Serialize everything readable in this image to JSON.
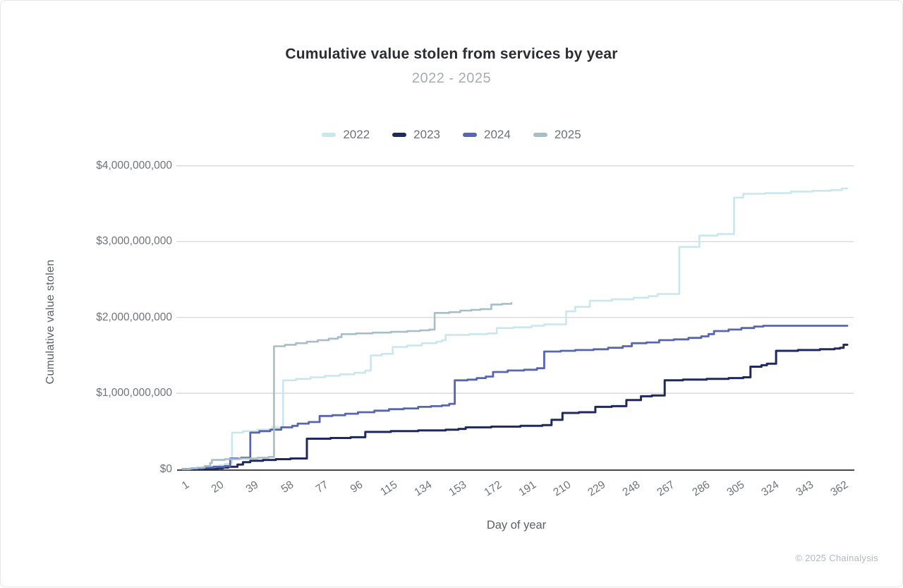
{
  "header": {
    "title": "Cumulative value stolen from services by year",
    "subtitle": "2022 - 2025"
  },
  "footer": {
    "copyright": "© 2025 Chainalysis"
  },
  "chart_data": {
    "type": "line",
    "subtype": "cumulative-step",
    "title": "Cumulative value stolen from services by year",
    "subtitle": "2022 - 2025",
    "xlabel": "Day of year",
    "ylabel": "Cumulative value stolen",
    "values_unit": "USD billions",
    "xlim": [
      1,
      365
    ],
    "ylim_billions": [
      0,
      4
    ],
    "grid": true,
    "legend_position": "top",
    "x_ticks": [
      1,
      20,
      39,
      58,
      77,
      96,
      115,
      134,
      153,
      172,
      191,
      210,
      229,
      248,
      267,
      286,
      305,
      324,
      343,
      362
    ],
    "y_ticks": [
      {
        "value": 4,
        "label": "$4,000,000,000"
      },
      {
        "value": 3,
        "label": "$3,000,000,000"
      },
      {
        "value": 2,
        "label": "$2,000,000,000"
      },
      {
        "value": 1,
        "label": "$1,000,000,000"
      },
      {
        "value": 0,
        "label": "$0"
      }
    ],
    "series": [
      {
        "name": "2022",
        "color": "#cbe7ee",
        "stroke_width": 2.6,
        "final_value_billions": 3.7,
        "points": [
          [
            1,
            0
          ],
          [
            6,
            0.01
          ],
          [
            11,
            0.02
          ],
          [
            16,
            0.04
          ],
          [
            21,
            0.05
          ],
          [
            24,
            0.07
          ],
          [
            27,
            0.08
          ],
          [
            28,
            0.48
          ],
          [
            34,
            0.5
          ],
          [
            42,
            0.52
          ],
          [
            50,
            0.55
          ],
          [
            56,
            1.17
          ],
          [
            63,
            1.19
          ],
          [
            71,
            1.21
          ],
          [
            79,
            1.23
          ],
          [
            87,
            1.25
          ],
          [
            95,
            1.27
          ],
          [
            101,
            1.3
          ],
          [
            104,
            1.5
          ],
          [
            110,
            1.52
          ],
          [
            116,
            1.61
          ],
          [
            124,
            1.63
          ],
          [
            132,
            1.66
          ],
          [
            140,
            1.68
          ],
          [
            143,
            1.7
          ],
          [
            145,
            1.77
          ],
          [
            158,
            1.78
          ],
          [
            168,
            1.79
          ],
          [
            173,
            1.86
          ],
          [
            182,
            1.87
          ],
          [
            192,
            1.89
          ],
          [
            199,
            1.91
          ],
          [
            211,
            2.08
          ],
          [
            216,
            2.14
          ],
          [
            224,
            2.22
          ],
          [
            236,
            2.24
          ],
          [
            248,
            2.26
          ],
          [
            256,
            2.28
          ],
          [
            261,
            2.31
          ],
          [
            273,
            2.93
          ],
          [
            284,
            3.08
          ],
          [
            294,
            3.1
          ],
          [
            303,
            3.58
          ],
          [
            308,
            3.63
          ],
          [
            320,
            3.64
          ],
          [
            334,
            3.66
          ],
          [
            346,
            3.67
          ],
          [
            356,
            3.68
          ],
          [
            362,
            3.7
          ],
          [
            365,
            3.7
          ]
        ]
      },
      {
        "name": "2023",
        "color": "#20295e",
        "stroke_width": 3,
        "final_value_billions": 1.64,
        "points": [
          [
            1,
            0
          ],
          [
            20,
            0.01
          ],
          [
            23,
            0.02
          ],
          [
            26,
            0.03
          ],
          [
            31,
            0.06
          ],
          [
            34,
            0.09
          ],
          [
            38,
            0.11
          ],
          [
            45,
            0.12
          ],
          [
            52,
            0.13
          ],
          [
            60,
            0.14
          ],
          [
            69,
            0.4
          ],
          [
            82,
            0.41
          ],
          [
            93,
            0.42
          ],
          [
            101,
            0.49
          ],
          [
            115,
            0.5
          ],
          [
            130,
            0.51
          ],
          [
            145,
            0.52
          ],
          [
            152,
            0.53
          ],
          [
            156,
            0.55
          ],
          [
            170,
            0.56
          ],
          [
            186,
            0.57
          ],
          [
            198,
            0.58
          ],
          [
            203,
            0.65
          ],
          [
            209,
            0.74
          ],
          [
            218,
            0.75
          ],
          [
            227,
            0.82
          ],
          [
            236,
            0.83
          ],
          [
            244,
            0.91
          ],
          [
            252,
            0.96
          ],
          [
            258,
            0.97
          ],
          [
            265,
            1.17
          ],
          [
            275,
            1.18
          ],
          [
            288,
            1.19
          ],
          [
            300,
            1.2
          ],
          [
            308,
            1.21
          ],
          [
            312,
            1.35
          ],
          [
            318,
            1.37
          ],
          [
            321,
            1.39
          ],
          [
            326,
            1.56
          ],
          [
            338,
            1.57
          ],
          [
            350,
            1.58
          ],
          [
            358,
            1.59
          ],
          [
            361,
            1.6
          ],
          [
            363,
            1.64
          ],
          [
            365,
            1.64
          ]
        ]
      },
      {
        "name": "2024",
        "color": "#5866ad",
        "stroke_width": 2.8,
        "final_value_billions": 1.89,
        "points": [
          [
            1,
            0
          ],
          [
            6,
            0.01
          ],
          [
            12,
            0.02
          ],
          [
            18,
            0.03
          ],
          [
            24,
            0.04
          ],
          [
            27,
            0.14
          ],
          [
            33,
            0.15
          ],
          [
            38,
            0.48
          ],
          [
            43,
            0.5
          ],
          [
            49,
            0.52
          ],
          [
            55,
            0.55
          ],
          [
            61,
            0.57
          ],
          [
            64,
            0.6
          ],
          [
            70,
            0.62
          ],
          [
            76,
            0.7
          ],
          [
            83,
            0.71
          ],
          [
            90,
            0.73
          ],
          [
            97,
            0.75
          ],
          [
            106,
            0.77
          ],
          [
            114,
            0.79
          ],
          [
            122,
            0.8
          ],
          [
            130,
            0.82
          ],
          [
            137,
            0.83
          ],
          [
            143,
            0.84
          ],
          [
            147,
            0.86
          ],
          [
            150,
            1.17
          ],
          [
            157,
            1.18
          ],
          [
            162,
            1.2
          ],
          [
            167,
            1.22
          ],
          [
            171,
            1.28
          ],
          [
            179,
            1.3
          ],
          [
            188,
            1.31
          ],
          [
            195,
            1.33
          ],
          [
            199,
            1.55
          ],
          [
            208,
            1.56
          ],
          [
            216,
            1.57
          ],
          [
            226,
            1.58
          ],
          [
            234,
            1.6
          ],
          [
            242,
            1.62
          ],
          [
            247,
            1.66
          ],
          [
            255,
            1.67
          ],
          [
            262,
            1.7
          ],
          [
            270,
            1.71
          ],
          [
            278,
            1.73
          ],
          [
            285,
            1.75
          ],
          [
            289,
            1.78
          ],
          [
            292,
            1.82
          ],
          [
            300,
            1.84
          ],
          [
            307,
            1.86
          ],
          [
            314,
            1.88
          ],
          [
            319,
            1.89
          ],
          [
            365,
            1.89
          ]
        ]
      },
      {
        "name": "2025",
        "color": "#a7bec9",
        "stroke_width": 2.6,
        "final_value_billions": 2.19,
        "points": [
          [
            1,
            0
          ],
          [
            5,
            0.01
          ],
          [
            9,
            0.02
          ],
          [
            13,
            0.04
          ],
          [
            16,
            0.08
          ],
          [
            17,
            0.12
          ],
          [
            24,
            0.13
          ],
          [
            32,
            0.14
          ],
          [
            42,
            0.15
          ],
          [
            48,
            0.16
          ],
          [
            51,
            1.62
          ],
          [
            57,
            1.64
          ],
          [
            63,
            1.66
          ],
          [
            69,
            1.68
          ],
          [
            75,
            1.7
          ],
          [
            81,
            1.72
          ],
          [
            86,
            1.74
          ],
          [
            88,
            1.78
          ],
          [
            96,
            1.79
          ],
          [
            105,
            1.8
          ],
          [
            115,
            1.81
          ],
          [
            124,
            1.82
          ],
          [
            131,
            1.83
          ],
          [
            136,
            1.84
          ],
          [
            139,
            2.06
          ],
          [
            147,
            2.07
          ],
          [
            153,
            2.09
          ],
          [
            159,
            2.1
          ],
          [
            164,
            2.11
          ],
          [
            170,
            2.17
          ],
          [
            176,
            2.18
          ],
          [
            181,
            2.19
          ]
        ]
      }
    ],
    "colors": {
      "gridline": "#d2d2d4",
      "axis_line": "#45454b",
      "tick_text": "#6f737b",
      "title_text": "#2b2d33",
      "subtitle_text": "#a7acb5"
    }
  }
}
